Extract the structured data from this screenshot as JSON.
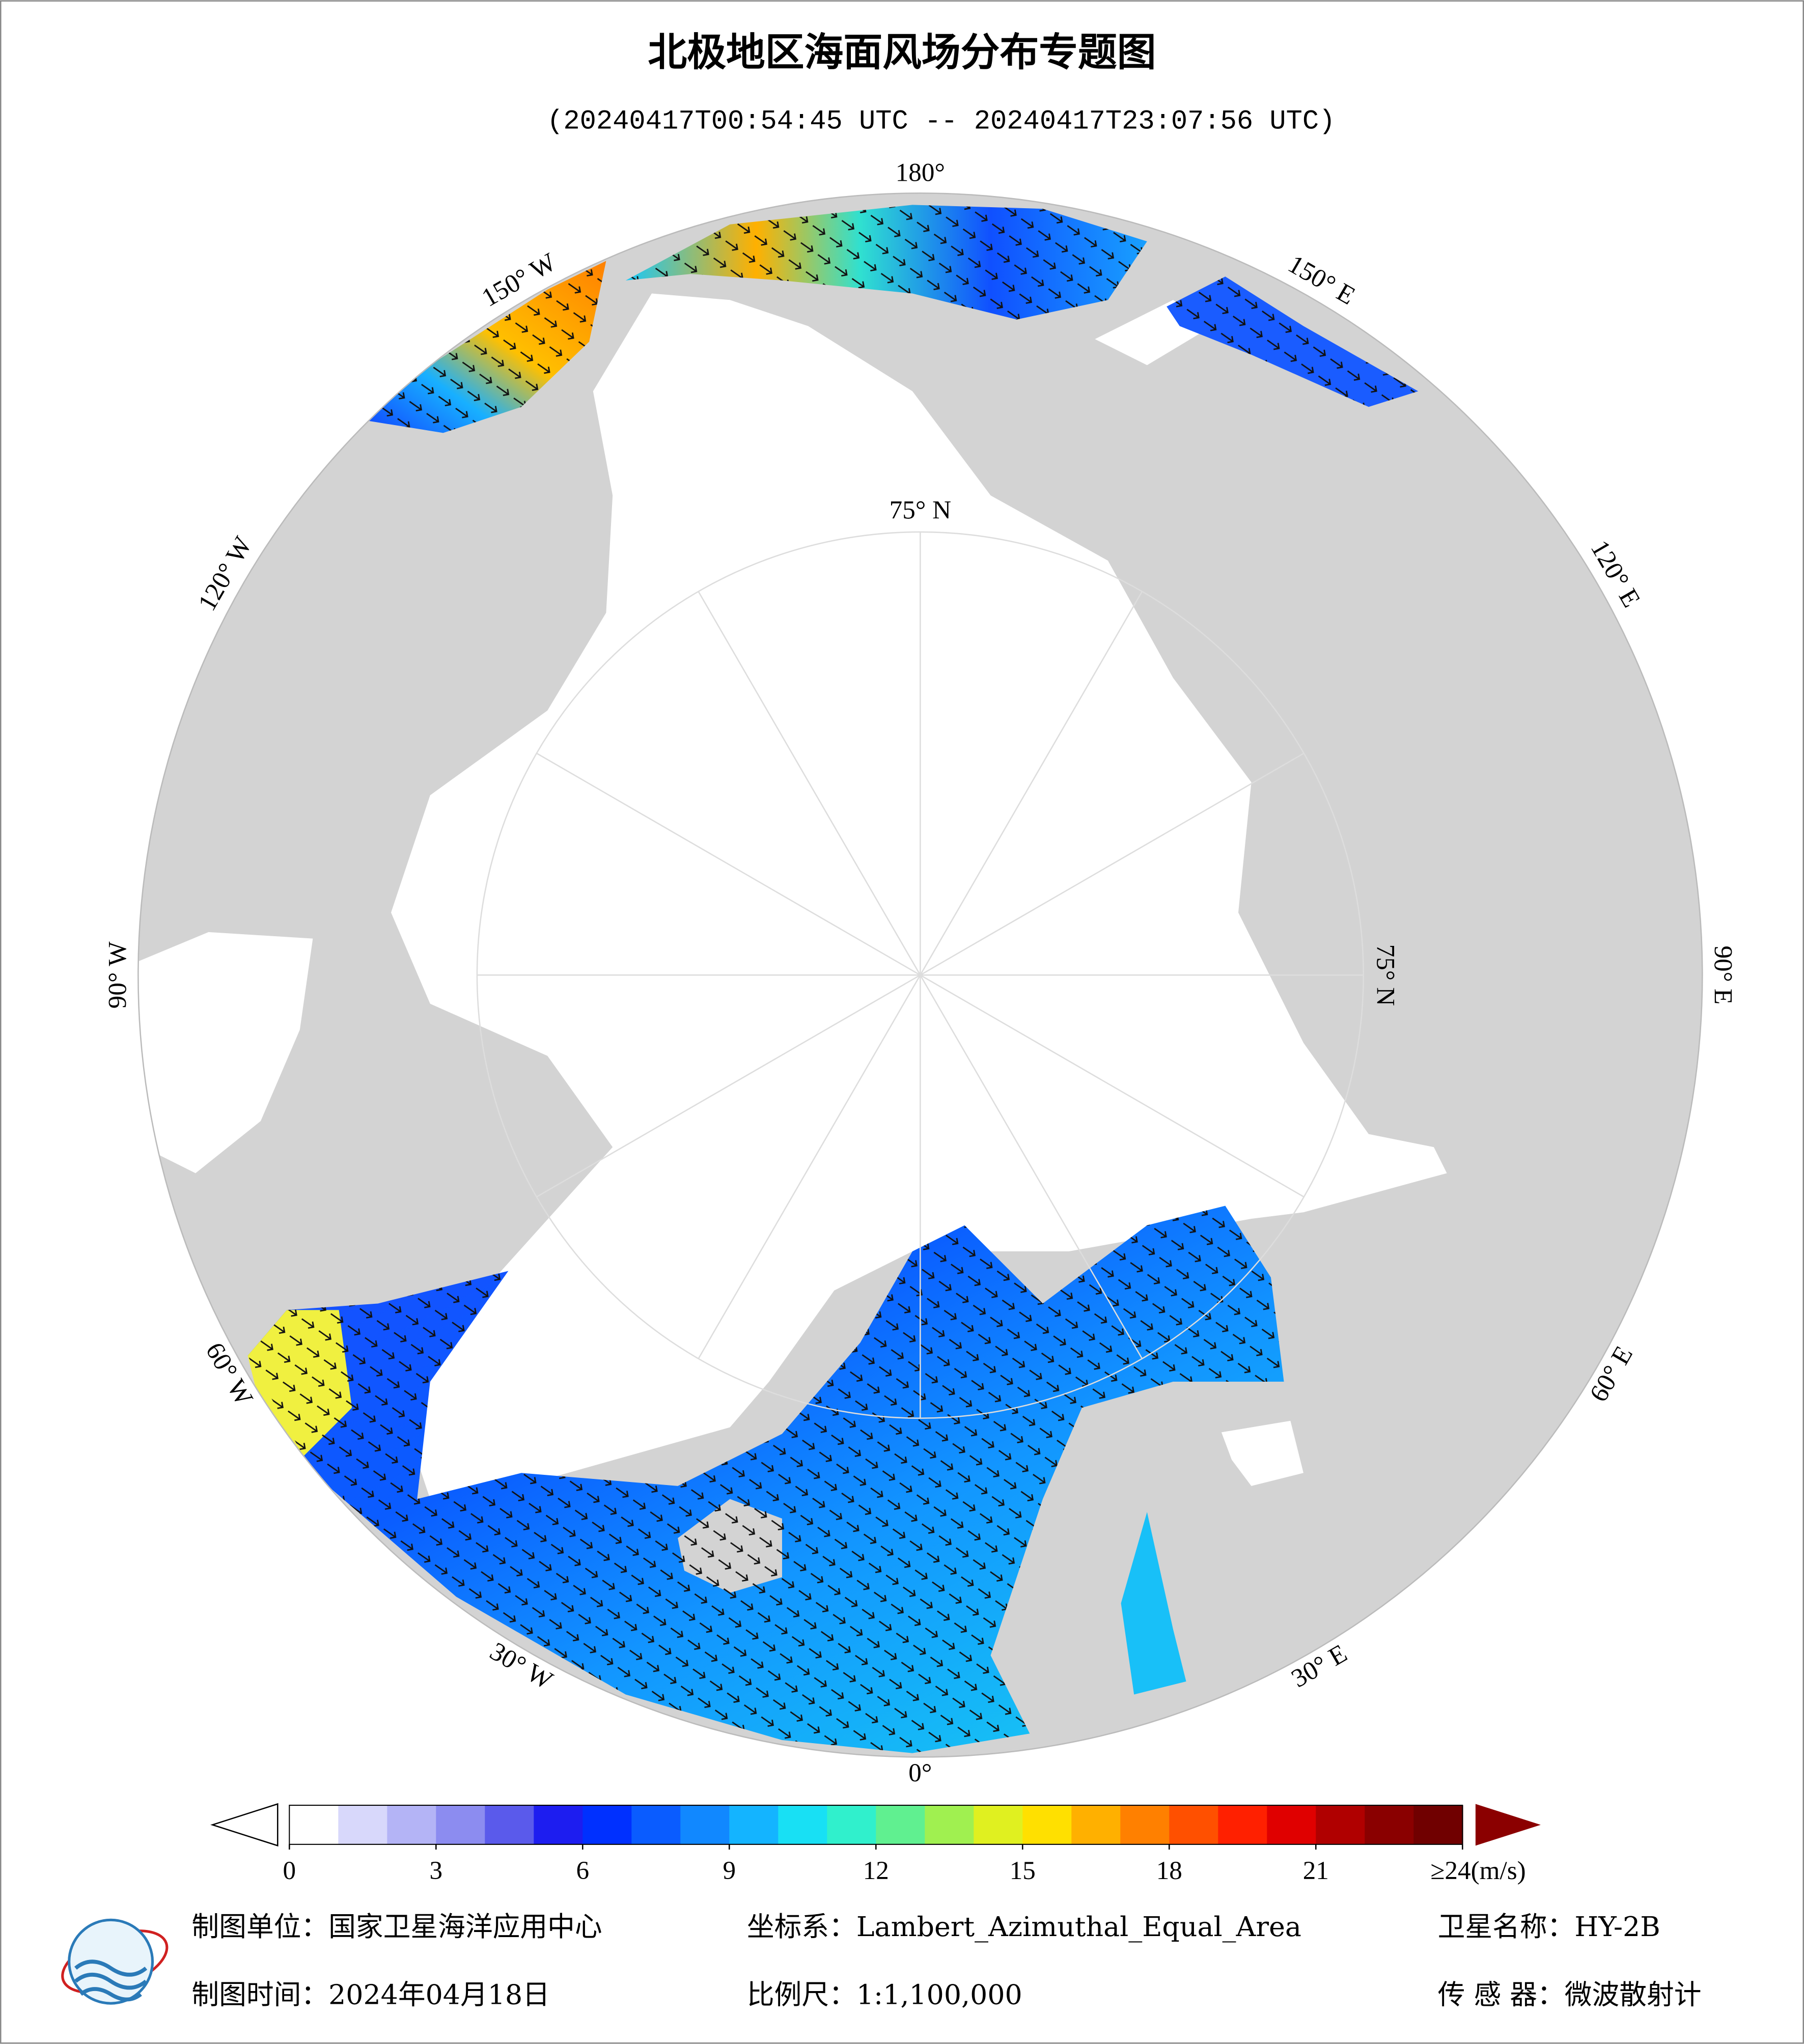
{
  "title": "北极地区海面风场分布专题图",
  "subtitle": "(20240417T00:54:45 UTC -- 20240417T23:07:56 UTC)",
  "map": {
    "longitude_labels": [
      "180°",
      "150° E",
      "120° E",
      "90° E",
      "60° E",
      "30° E",
      "0°",
      "30° W",
      "60° W",
      "90° W",
      "120° W",
      "150° W"
    ],
    "latitude_labels": [
      "75° N",
      "75° N"
    ]
  },
  "colorbar": {
    "lim": [
      0,
      24
    ],
    "ticks": [
      0,
      3,
      6,
      9,
      12,
      15,
      18,
      21,
      {
        "value": 24,
        "label": "≥24(m/s)"
      }
    ],
    "colors": [
      "#ffffff",
      "#d8d8fb",
      "#b4b4f6",
      "#8c8cf0",
      "#5a5aeb",
      "#1d1df0",
      "#0030ff",
      "#0a5cff",
      "#1188ff",
      "#14b4ff",
      "#18e0f4",
      "#30f0cc",
      "#60f090",
      "#a0f050",
      "#e0f020",
      "#ffe000",
      "#ffb000",
      "#ff8000",
      "#ff5000",
      "#ff2000",
      "#e00000",
      "#b00000",
      "#8a0000",
      "#700000"
    ]
  },
  "footer": {
    "unit": "制图单位：国家卫星海洋应用中心",
    "date": "制图时间：2024年04月18日",
    "projection": "坐标系：Lambert_Azimuthal_Equal_Area",
    "scale": "比例尺：1:1,100,000",
    "satellite": "卫星名称：HY-2B",
    "sensor": "传 感 器：微波散射计"
  }
}
